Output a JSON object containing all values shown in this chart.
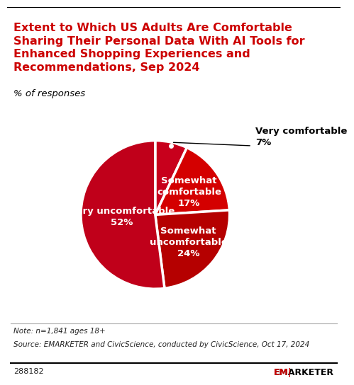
{
  "title": "Extent to Which US Adults Are Comfortable\nSharing Their Personal Data With AI Tools for\nEnhanced Shopping Experiences and\nRecommendations, Sep 2024",
  "subtitle": "% of responses",
  "slices": [
    7,
    17,
    24,
    52
  ],
  "labels": [
    "Very comfortable",
    "Somewhat\ncomfortable\n17%",
    "Somewhat\nuncomfortable\n24%",
    "Very uncomfortable\n52%"
  ],
  "label_very_comfortable": "Very comfortable\n7%",
  "colors": [
    "#cc0000",
    "#dd1111",
    "#cc0000",
    "#cc0000"
  ],
  "pie_colors": [
    "#c00000",
    "#d40000",
    "#b80000",
    "#cc0000"
  ],
  "note": "Note: n=1,841 ages 18+",
  "source": "Source: EMARKETER and CivicScience, conducted by CivicScience, Oct 17, 2024",
  "chart_id": "288182",
  "background_color": "#ffffff",
  "text_color_title": "#cc0000",
  "text_color_body": "#000000",
  "wedge_text_color": "#ffffff",
  "start_angle": 90
}
